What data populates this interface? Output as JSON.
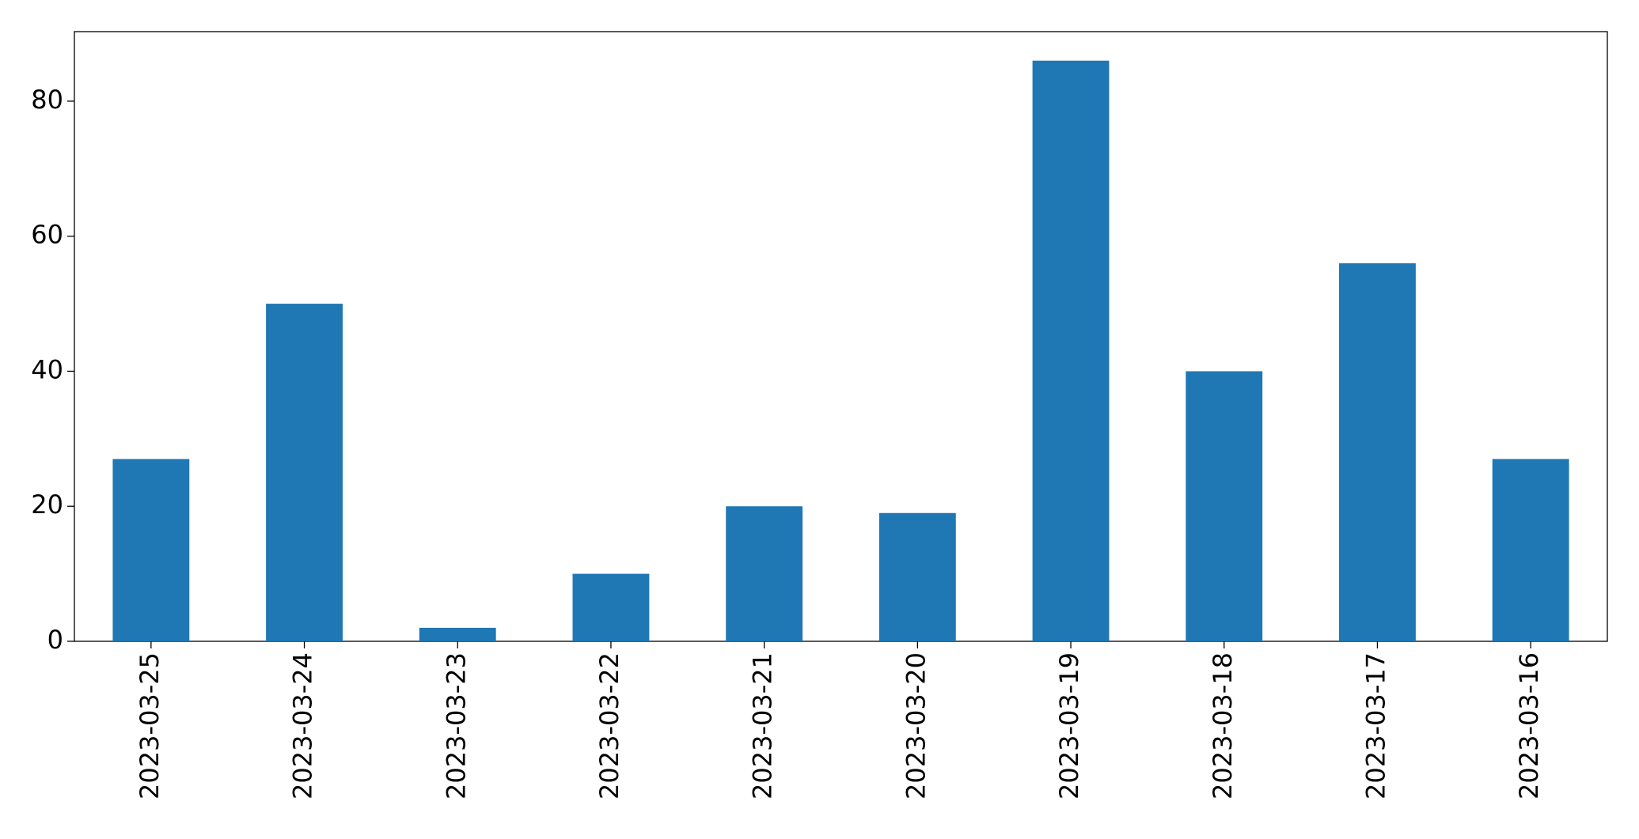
{
  "chart_data": {
    "type": "bar",
    "categories": [
      "2023-03-25",
      "2023-03-24",
      "2023-03-23",
      "2023-03-22",
      "2023-03-21",
      "2023-03-20",
      "2023-03-19",
      "2023-03-18",
      "2023-03-17",
      "2023-03-16"
    ],
    "values": [
      27,
      50,
      2,
      10,
      20,
      19,
      86,
      40,
      56,
      27
    ],
    "color": "#1f77b4",
    "ylim": [
      0,
      90.3
    ],
    "yticks": [
      0,
      20,
      40,
      60,
      80
    ],
    "grid": false
  }
}
